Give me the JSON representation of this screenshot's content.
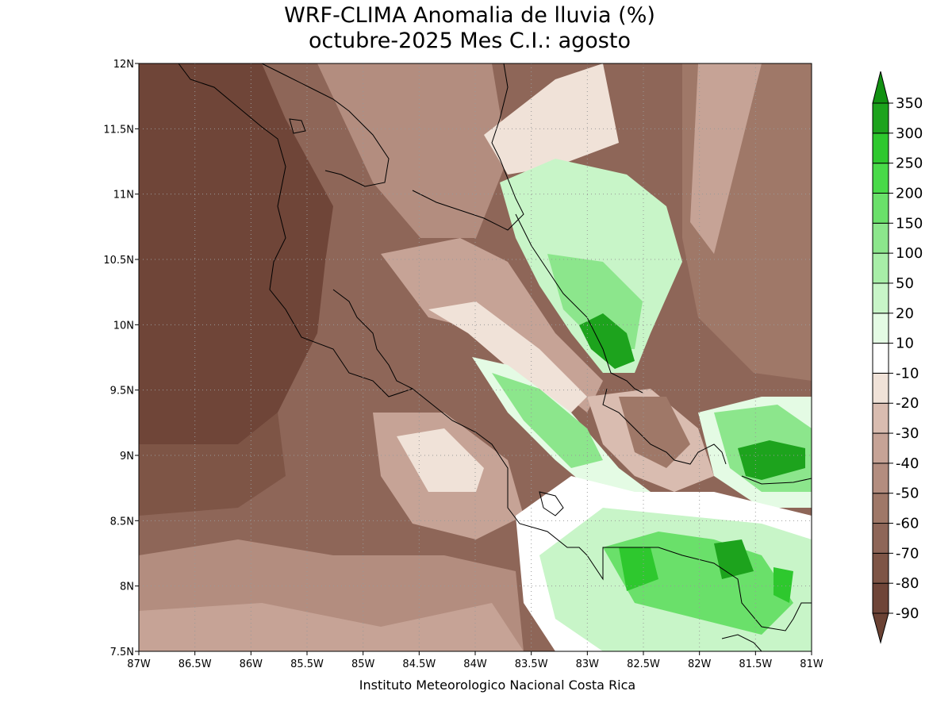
{
  "map": {
    "title": [
      "WRF-CLIMA Anomalia de lluvia (%)",
      "octubre-2025 Mes C.I.: agosto"
    ],
    "lon_range": [
      -87,
      -81
    ],
    "lat_range": [
      7.5,
      12
    ],
    "lon_ticks": [
      {
        "value": -87,
        "label": "87W"
      },
      {
        "value": -86.5,
        "label": "86.5W"
      },
      {
        "value": -86,
        "label": "86W"
      },
      {
        "value": -85.5,
        "label": "85.5W"
      },
      {
        "value": -85,
        "label": "85W"
      },
      {
        "value": -84.5,
        "label": "84.5W"
      },
      {
        "value": -84,
        "label": "84W"
      },
      {
        "value": -83.5,
        "label": "83.5W"
      },
      {
        "value": -83,
        "label": "83W"
      },
      {
        "value": -82.5,
        "label": "82.5W"
      },
      {
        "value": -82,
        "label": "82W"
      },
      {
        "value": -81.5,
        "label": "81.5W"
      },
      {
        "value": -81,
        "label": "81W"
      }
    ],
    "lat_ticks": [
      {
        "value": 7.5,
        "label": "7.5N"
      },
      {
        "value": 8,
        "label": "8N"
      },
      {
        "value": 8.5,
        "label": "8.5N"
      },
      {
        "value": 9,
        "label": "9N"
      },
      {
        "value": 9.5,
        "label": "9.5N"
      },
      {
        "value": 10,
        "label": "10N"
      },
      {
        "value": 10.5,
        "label": "10.5N"
      },
      {
        "value": 11,
        "label": "11N"
      },
      {
        "value": 11.5,
        "label": "11.5N"
      },
      {
        "value": 12,
        "label": "12N"
      }
    ],
    "colorbar": {
      "levels": [
        -90,
        -80,
        -70,
        -60,
        -50,
        -40,
        -30,
        -20,
        -10,
        10,
        20,
        50,
        100,
        150,
        200,
        250,
        300,
        350
      ],
      "colors": [
        "#6b4234",
        "#6f4538",
        "#7e5546",
        "#8e6658",
        "#9f7868",
        "#b38d7f",
        "#c6a396",
        "#d9bcb0",
        "#f0e2d8",
        "#ffffff",
        "#e4fbe4",
        "#c8f5c8",
        "#a8eea8",
        "#8ce68c",
        "#6ae06a",
        "#49da49",
        "#2ec82e",
        "#1da31d",
        "#129112"
      ]
    },
    "credit": "Instituto Meteorologico Nacional Costa Rica"
  }
}
